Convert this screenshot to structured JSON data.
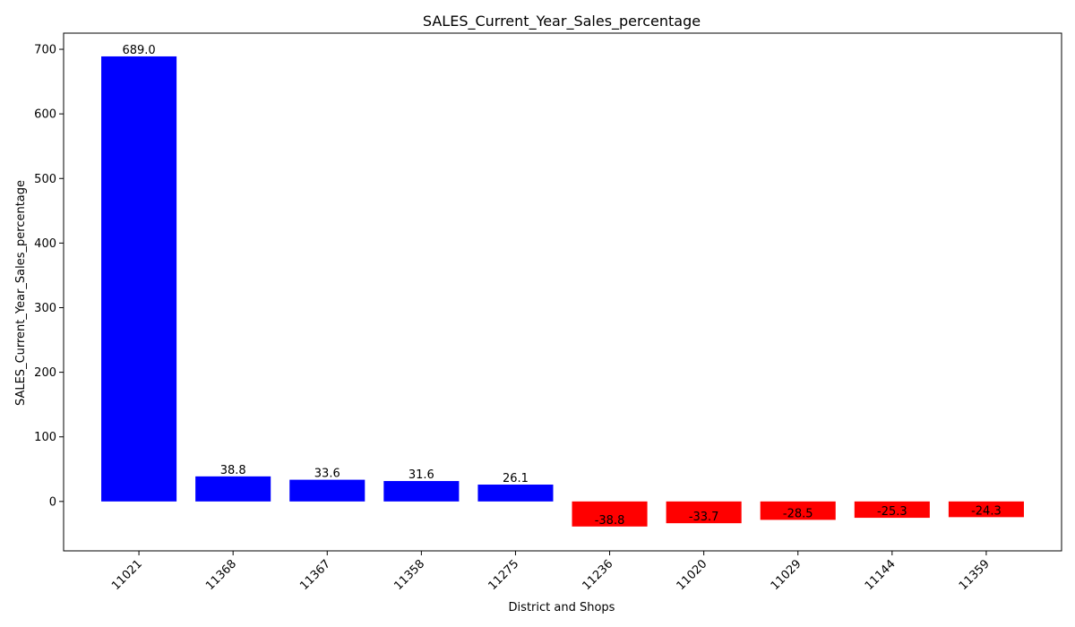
{
  "chart_data": {
    "type": "bar",
    "title": "SALES_Current_Year_Sales_percentage",
    "xlabel": "District and Shops",
    "ylabel": "SALES_Current_Year_Sales_percentage",
    "categories": [
      "11021",
      "11368",
      "11367",
      "11358",
      "11275",
      "11236",
      "11020",
      "11029",
      "11144",
      "11359"
    ],
    "values": [
      689.0,
      38.8,
      33.6,
      31.6,
      26.1,
      -38.8,
      -33.7,
      -28.5,
      -25.3,
      -24.3
    ],
    "value_labels": [
      "689.0",
      "38.8",
      "33.6",
      "31.6",
      "26.1",
      "-38.8",
      "-33.7",
      "-28.5",
      "-25.3",
      "-24.3"
    ],
    "ylim": [
      -76.5,
      725
    ],
    "yticks": [
      0,
      100,
      200,
      300,
      400,
      500,
      600,
      700
    ],
    "ytick_labels": [
      "0",
      "100",
      "200",
      "300",
      "400",
      "500",
      "600",
      "700"
    ],
    "grid": false,
    "colors": {
      "positive": "#0000ff",
      "negative": "#ff0000"
    }
  }
}
